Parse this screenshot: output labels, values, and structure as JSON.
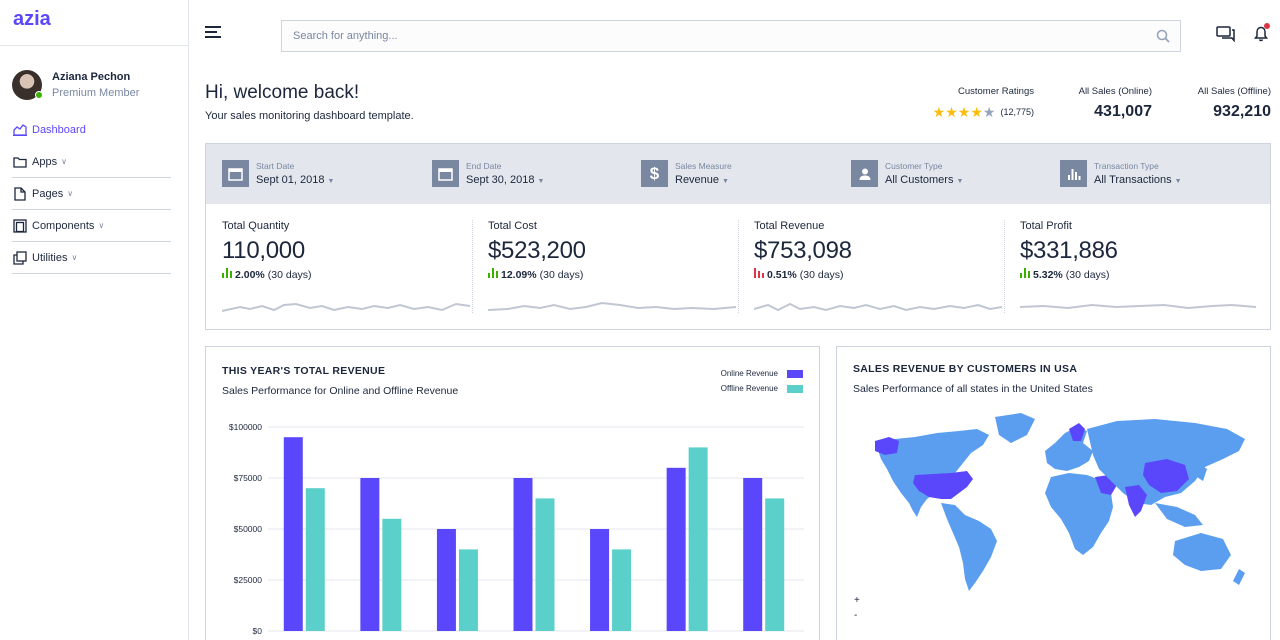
{
  "app": {
    "logo": "azia"
  },
  "user": {
    "name": "Aziana Pechon",
    "role": "Premium Member"
  },
  "sidebar": {
    "items": [
      {
        "label": "Dashboard",
        "icon": "chart-area-icon"
      },
      {
        "label": "Apps",
        "icon": "folder-icon"
      },
      {
        "label": "Pages",
        "icon": "file-icon"
      },
      {
        "label": "Components",
        "icon": "layers-icon"
      },
      {
        "label": "Utilities",
        "icon": "copy-icon"
      }
    ]
  },
  "header": {
    "search_placeholder": "Search for anything..."
  },
  "welcome": {
    "title": "Hi, welcome back!",
    "subtitle": "Your sales monitoring dashboard template."
  },
  "ratings": {
    "label": "Customer Ratings",
    "stars": 4,
    "count": "(12,775)"
  },
  "top_stats": [
    {
      "label": "All Sales (Online)",
      "value": "431,007"
    },
    {
      "label": "All Sales (Offline)",
      "value": "932,210"
    }
  ],
  "filters": [
    {
      "label": "Start Date",
      "value": "Sept 01, 2018",
      "icon": "calendar-icon"
    },
    {
      "label": "End Date",
      "value": "Sept 30, 2018",
      "icon": "calendar-icon"
    },
    {
      "label": "Sales Measure",
      "value": "Revenue",
      "icon": "dollar-icon"
    },
    {
      "label": "Customer Type",
      "value": "All Customers",
      "icon": "user-icon"
    },
    {
      "label": "Transaction Type",
      "value": "All Transactions",
      "icon": "bar-chart-icon"
    }
  ],
  "kpis": [
    {
      "label": "Total Quantity",
      "value": "110,000",
      "change": "2.00%",
      "period": "(30 days)",
      "trend": "up",
      "color": "#3bb001"
    },
    {
      "label": "Total Cost",
      "value": "$523,200",
      "change": "12.09%",
      "period": "(30 days)",
      "trend": "up",
      "color": "#3bb001"
    },
    {
      "label": "Total Revenue",
      "value": "$753,098",
      "change": "0.51%",
      "period": "(30 days)",
      "trend": "down",
      "color": "#dc3545"
    },
    {
      "label": "Total Profit",
      "value": "$331,886",
      "change": "5.32%",
      "period": "(30 days)",
      "trend": "up",
      "color": "#3bb001"
    }
  ],
  "revenue_card": {
    "title": "THIS YEAR'S TOTAL REVENUE",
    "subtitle": "Sales Performance for Online and Offline Revenue",
    "zoom_in": "+",
    "zoom_out": "-"
  },
  "map_card": {
    "title": "SALES REVENUE BY CUSTOMERS IN USA",
    "subtitle": "Sales Performance of all states in the United States",
    "zoom_in": "+",
    "zoom_out": "-"
  },
  "colors": {
    "online": "#5b47fb",
    "offline": "#5bcfc9",
    "accent": "#5b47fb",
    "map_land": "#5b9ef0",
    "map_highlight": "#5b47fb"
  },
  "chart_data": {
    "type": "bar",
    "categories": [
      "",
      "",
      "",
      "",
      "",
      "",
      ""
    ],
    "series": [
      {
        "name": "Online Revenue",
        "values": [
          95000,
          75000,
          50000,
          75000,
          50000,
          80000,
          75000
        ]
      },
      {
        "name": "Offline Revenue",
        "values": [
          70000,
          55000,
          40000,
          65000,
          40000,
          90000,
          65000
        ]
      }
    ],
    "ylim": [
      0,
      100000
    ],
    "yticks": [
      "$0",
      "$25000",
      "$50000",
      "$75000",
      "$100000"
    ],
    "legend_position": "top-right",
    "grid": true
  }
}
